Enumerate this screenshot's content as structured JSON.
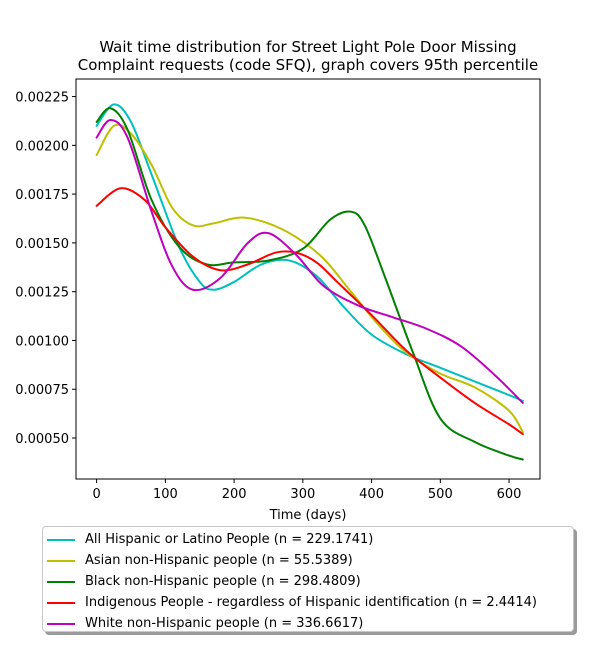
{
  "chart_data": {
    "type": "line",
    "title_lines": [
      "Wait time distribution  for Street Light Pole Door Missing",
      "Complaint  requests (code SFQ), graph covers 95th percentile"
    ],
    "xlabel": "Time (days)",
    "ylabel": "",
    "xlim": [
      -30,
      645
    ],
    "ylim": [
      0.00029,
      0.00234
    ],
    "xticks": [
      0,
      100,
      200,
      300,
      400,
      500,
      600
    ],
    "xtick_labels": [
      "0",
      "100",
      "200",
      "300",
      "400",
      "500",
      "600"
    ],
    "yticks": [
      0.0005,
      0.00075,
      0.001,
      0.00125,
      0.0015,
      0.00175,
      0.002,
      0.00225
    ],
    "ytick_labels": [
      "0.00050",
      "0.00075",
      "0.00100",
      "0.00125",
      "0.00150",
      "0.00175",
      "0.00200",
      "0.00225"
    ],
    "grid": false,
    "legend_position": "below",
    "series": [
      {
        "name": "All Hispanic or Latino People (n = 229.1741)",
        "color": "#00bfbf",
        "x": [
          0,
          25,
          50,
          80,
          120,
          150,
          170,
          200,
          240,
          280,
          320,
          360,
          400,
          450,
          500,
          550,
          600,
          620
        ],
        "y": [
          0.0021,
          0.00221,
          0.00212,
          0.00185,
          0.00148,
          0.0013,
          0.00126,
          0.0013,
          0.00139,
          0.00141,
          0.00133,
          0.00117,
          0.00103,
          0.00093,
          0.00086,
          0.00079,
          0.00072,
          0.00069
        ]
      },
      {
        "name": "Asian non-Hispanic people (n = 55.5389)",
        "color": "#bfbf00",
        "x": [
          0,
          25,
          50,
          80,
          110,
          140,
          170,
          210,
          250,
          290,
          330,
          370,
          410,
          450,
          500,
          550,
          600,
          620
        ],
        "y": [
          0.00195,
          0.0021,
          0.00206,
          0.0019,
          0.00168,
          0.00159,
          0.0016,
          0.00163,
          0.0016,
          0.00153,
          0.00142,
          0.00125,
          0.00108,
          0.00094,
          0.00083,
          0.00076,
          0.00064,
          0.00053
        ]
      },
      {
        "name": "Black non-Hispanic people (n = 298.4809)",
        "color": "#008000",
        "x": [
          0,
          20,
          45,
          80,
          120,
          160,
          200,
          250,
          300,
          340,
          370,
          390,
          420,
          460,
          500,
          550,
          600,
          620
        ],
        "y": [
          0.00212,
          0.00219,
          0.00208,
          0.00172,
          0.00148,
          0.00139,
          0.0014,
          0.00141,
          0.00147,
          0.00162,
          0.00166,
          0.00159,
          0.00132,
          0.00094,
          0.0006,
          0.00048,
          0.00041,
          0.00039
        ]
      },
      {
        "name": "Indigenous People - regardless of Hispanic identification (n = 2.4414)",
        "color": "#ff0000",
        "x": [
          0,
          35,
          70,
          100,
          140,
          180,
          220,
          260,
          290,
          320,
          350,
          400,
          450,
          500,
          550,
          600,
          620
        ],
        "y": [
          0.00169,
          0.00178,
          0.00172,
          0.00158,
          0.00143,
          0.00136,
          0.00139,
          0.00145,
          0.00145,
          0.0014,
          0.0013,
          0.00113,
          0.00095,
          0.00081,
          0.00068,
          0.00057,
          0.00052
        ]
      },
      {
        "name": "White non-Hispanic people (n = 336.6617)",
        "color": "#bf00bf",
        "x": [
          0,
          20,
          45,
          80,
          110,
          140,
          180,
          220,
          250,
          290,
          330,
          380,
          430,
          480,
          530,
          580,
          620
        ],
        "y": [
          0.00204,
          0.00213,
          0.00204,
          0.00166,
          0.00138,
          0.00126,
          0.00132,
          0.0015,
          0.00155,
          0.00144,
          0.00128,
          0.00118,
          0.00112,
          0.00106,
          0.00097,
          0.00082,
          0.00068
        ]
      }
    ]
  }
}
